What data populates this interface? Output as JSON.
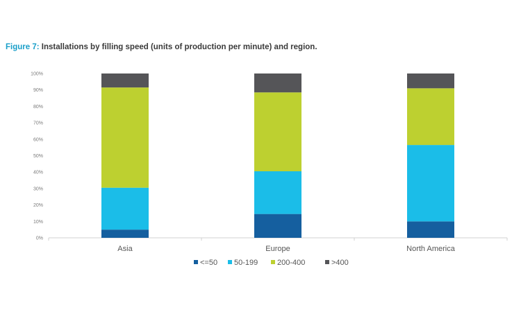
{
  "figure": {
    "label": "Figure 7:",
    "caption": " Installations by filling speed (units of production per minute) and region."
  },
  "colors": {
    "label_accent": "#1a9fc9",
    "series": [
      "#155f9f",
      "#1bbde8",
      "#bdd030",
      "#555558"
    ],
    "axis": "#d0d0d0",
    "text": "#555555"
  },
  "chart_data": {
    "type": "bar",
    "stacked": true,
    "normalized_percent": true,
    "categories": [
      "Asia",
      "Europe",
      "North America"
    ],
    "series": [
      {
        "name": "<=50",
        "values": [
          5,
          14.5,
          10
        ]
      },
      {
        "name": "50-199",
        "values": [
          25.5,
          26,
          46.5
        ]
      },
      {
        "name": "200-400",
        "values": [
          61,
          48,
          34.5
        ]
      },
      {
        "name": ">400",
        "values": [
          8.5,
          11.5,
          9
        ]
      }
    ],
    "y_ticks": [
      "0%",
      "10%",
      "20%",
      "30%",
      "40%",
      "50%",
      "60%",
      "70%",
      "80%",
      "90%",
      "100%"
    ],
    "ylim": [
      0,
      100
    ],
    "grid": false,
    "legend_position": "bottom"
  }
}
